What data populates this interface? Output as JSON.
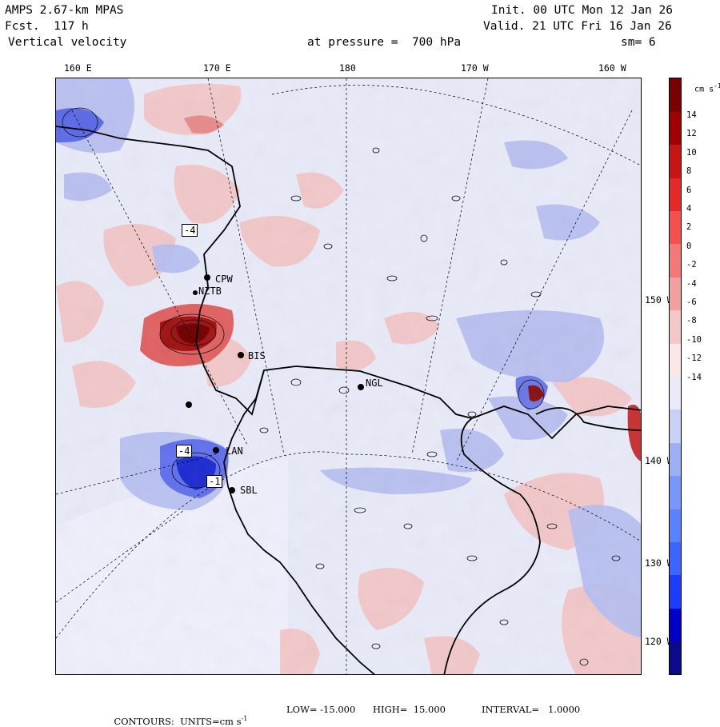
{
  "header": {
    "model": "AMPS 2.67-km MPAS",
    "forecast": "Fcst.  117 h",
    "field": "Vertical velocity",
    "init": "Init. 00 UTC Mon 12 Jan 26",
    "valid": "Valid. 21 UTC Fri 16 Jan 26",
    "pressure": "at pressure =  700 hPa",
    "smoothing": "sm= 6"
  },
  "top_axis_labels": [
    "160 E",
    "170 E",
    "180",
    "170 W",
    "160 W"
  ],
  "right_axis_labels": [
    "150 W",
    "140 W",
    "130 W",
    "120 W"
  ],
  "stations": [
    "CPW",
    "NZTB",
    "BIS",
    "NGL",
    "LAN",
    "SBL"
  ],
  "contour_marks": [
    "-4",
    "-4",
    "-1"
  ],
  "colorbar": {
    "units": "cm s",
    "units_exp": "-1",
    "tick_labels": [
      "14",
      "12",
      "10",
      "8",
      "6",
      "4",
      "2",
      "0",
      "-2",
      "-4",
      "-6",
      "-8",
      "-10",
      "-12",
      "-14"
    ],
    "colors": [
      "#0a0a8a",
      "#0000c8",
      "#1e3cff",
      "#3c64ff",
      "#5a82ff",
      "#7896ff",
      "#9eb0f5",
      "#c8d0f5",
      "#eaeafa",
      "#fae8e8",
      "#f5c8c8",
      "#f5a0a0",
      "#f57878",
      "#f55050",
      "#e62828",
      "#c81414",
      "#a00000",
      "#780000"
    ]
  },
  "colors": {
    "positive": "#f2b8b8",
    "positive_strong": "#b41414",
    "negative": "#aab4f0",
    "negative_strong": "#1e2ad2",
    "background_field": "#e6e8f8"
  },
  "footer": {
    "prefix": "CONTOURS:  UNITS=cm s",
    "units_exp": "-1",
    "low": "LOW= -15.000",
    "high": "HIGH=  15.000",
    "interval": "INTERVAL=   1.0000"
  }
}
